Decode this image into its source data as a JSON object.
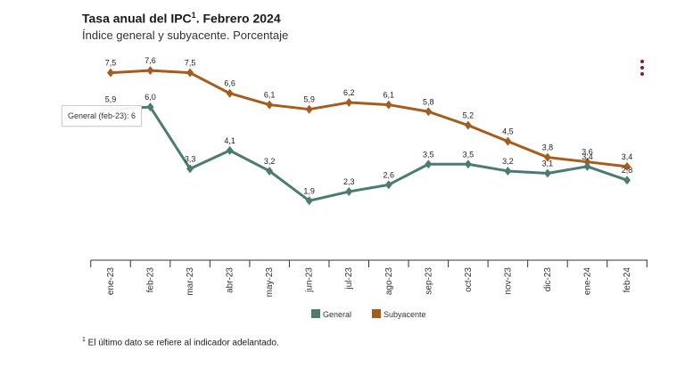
{
  "header": {
    "title": "Tasa anual del IPC",
    "title_sup": "1",
    "title_suffix": ". Febrero 2024",
    "subtitle": "Índice general y subyacente. Porcentaje"
  },
  "tooltip": {
    "text": "General (feb-23): 6"
  },
  "footnote": {
    "sup": "1",
    "text": " El último dato se refiere al indicador adelantado."
  },
  "colors": {
    "general": "#4a7c72",
    "subyacente": "#a65d1c",
    "menu": "#8b1a3a",
    "axis": "#333333"
  },
  "chart_data": {
    "type": "line",
    "categories": [
      "ene-23",
      "feb-23",
      "mar-23",
      "abr-23",
      "may-23",
      "jun-23",
      "jul-23",
      "ago-23",
      "sep-23",
      "oct-23",
      "nov-23",
      "dic-23",
      "ene-24",
      "feb-24"
    ],
    "series": [
      {
        "name": "General",
        "values": [
          5.9,
          6.0,
          3.3,
          4.1,
          3.2,
          1.9,
          2.3,
          2.6,
          3.5,
          3.5,
          3.2,
          3.1,
          3.4,
          2.8
        ],
        "labels": [
          "5,9",
          "6,0",
          "3,3",
          "4,1",
          "3,2",
          "1,9",
          "2,3",
          "2,6",
          "3,5",
          "3,5",
          "3,2",
          "3,1",
          "3,4",
          "2,8"
        ]
      },
      {
        "name": "Subyacente",
        "values": [
          7.5,
          7.6,
          7.5,
          6.6,
          6.1,
          5.9,
          6.2,
          6.1,
          5.8,
          5.2,
          4.5,
          3.8,
          3.6,
          3.4
        ],
        "labels": [
          "7,5",
          "7,6",
          "7,5",
          "6,6",
          "6,1",
          "5,9",
          "6,2",
          "6,1",
          "5,8",
          "5,2",
          "4,5",
          "3,8",
          "3,6",
          "3,4"
        ]
      }
    ],
    "legend_position": "bottom",
    "grid": false,
    "ylim": [
      -0.7,
      8.5
    ]
  }
}
